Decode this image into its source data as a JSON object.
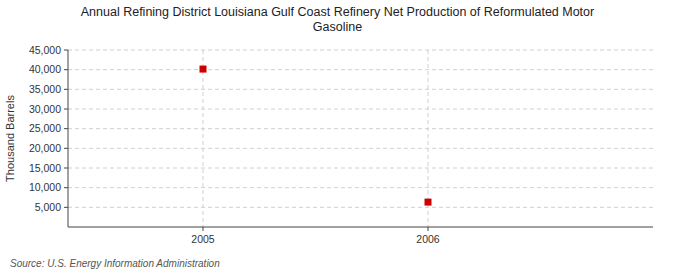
{
  "chart_data": {
    "type": "scatter",
    "title": "Annual Refining District Louisiana Gulf Coast Refinery Net Production of Reformulated Motor\nGasoline",
    "ylabel": "Thousand Barrels",
    "source": "Source: U.S. Energy Information Administration",
    "x": [
      2005,
      2006
    ],
    "values": [
      40152,
      6330
    ],
    "color": "#cc0000",
    "marker": "square",
    "xlim": [
      2004.4,
      2007.0
    ],
    "xticks": [
      2005,
      2006
    ],
    "ylim": [
      0,
      45000
    ],
    "yticks": [
      {
        "value": 5000,
        "label": "5,000"
      },
      {
        "value": 10000,
        "label": "10,000"
      },
      {
        "value": 15000,
        "label": "15,000"
      },
      {
        "value": 20000,
        "label": "20,000"
      },
      {
        "value": 25000,
        "label": "25,000"
      },
      {
        "value": 30000,
        "label": "30,000"
      },
      {
        "value": 35000,
        "label": "35,000"
      },
      {
        "value": 40000,
        "label": "40,000"
      },
      {
        "value": 45000,
        "label": "45,000"
      }
    ],
    "grid": true
  }
}
